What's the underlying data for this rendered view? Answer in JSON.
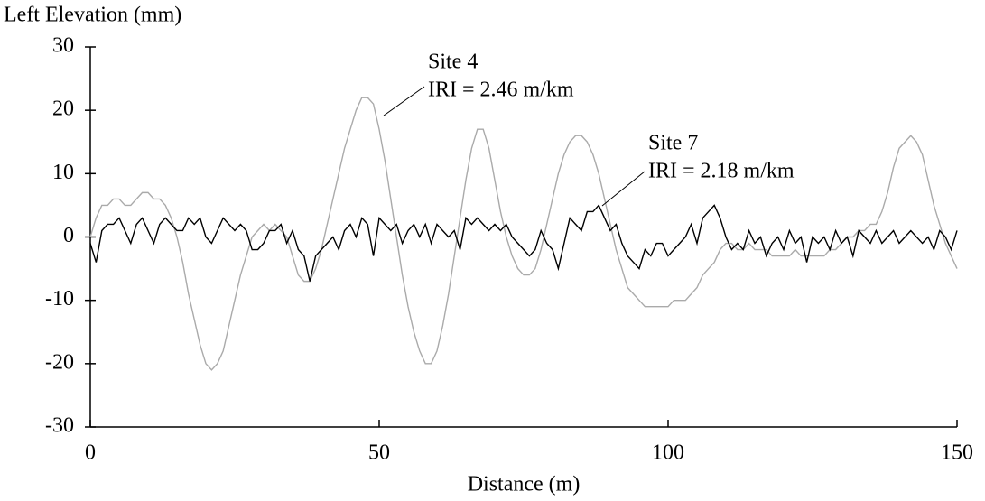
{
  "chart_data": {
    "type": "line",
    "y_label": "Left Elevation (mm)",
    "x_label": "Distance (m)",
    "x": [
      0,
      1,
      2,
      3,
      4,
      5,
      6,
      7,
      8,
      9,
      10,
      11,
      12,
      13,
      14,
      15,
      16,
      17,
      18,
      19,
      20,
      21,
      22,
      23,
      24,
      25,
      26,
      27,
      28,
      29,
      30,
      31,
      32,
      33,
      34,
      35,
      36,
      37,
      38,
      39,
      40,
      41,
      42,
      43,
      44,
      45,
      46,
      47,
      48,
      49,
      50,
      51,
      52,
      53,
      54,
      55,
      56,
      57,
      58,
      59,
      60,
      61,
      62,
      63,
      64,
      65,
      66,
      67,
      68,
      69,
      70,
      71,
      72,
      73,
      74,
      75,
      76,
      77,
      78,
      79,
      80,
      81,
      82,
      83,
      84,
      85,
      86,
      87,
      88,
      89,
      90,
      91,
      92,
      93,
      94,
      95,
      96,
      97,
      98,
      99,
      100,
      101,
      102,
      103,
      104,
      105,
      106,
      107,
      108,
      109,
      110,
      111,
      112,
      113,
      114,
      115,
      116,
      117,
      118,
      119,
      120,
      121,
      122,
      123,
      124,
      125,
      126,
      127,
      128,
      129,
      130,
      131,
      132,
      133,
      134,
      135,
      136,
      137,
      138,
      139,
      140,
      141,
      142,
      143,
      144,
      145,
      146,
      147,
      148,
      149,
      150
    ],
    "series": [
      {
        "name": "Site 4",
        "annotation": "IRI = 2.46 m/km",
        "color": "#aaaaaa",
        "values": [
          0,
          3,
          5,
          5,
          6,
          6,
          5,
          5,
          6,
          7,
          7,
          6,
          6,
          5,
          3,
          0,
          -4,
          -9,
          -13,
          -17,
          -20,
          -21,
          -20,
          -18,
          -14,
          -10,
          -6,
          -3,
          0,
          1,
          2,
          1,
          2,
          1,
          0,
          -3,
          -6,
          -7,
          -7,
          -5,
          -2,
          2,
          6,
          10,
          14,
          17,
          20,
          22,
          22,
          21,
          17,
          12,
          6,
          0,
          -6,
          -11,
          -15,
          -18,
          -20,
          -20,
          -18,
          -14,
          -9,
          -3,
          3,
          9,
          14,
          17,
          17,
          14,
          9,
          4,
          0,
          -3,
          -5,
          -6,
          -6,
          -5,
          -2,
          2,
          6,
          10,
          13,
          15,
          16,
          16,
          15,
          13,
          10,
          6,
          2,
          -2,
          -5,
          -8,
          -9,
          -10,
          -11,
          -11,
          -11,
          -11,
          -11,
          -10,
          -10,
          -10,
          -9,
          -8,
          -6,
          -5,
          -4,
          -2,
          -1,
          -1,
          -2,
          -2,
          -1,
          -2,
          -2,
          -2,
          -3,
          -3,
          -3,
          -3,
          -2,
          -3,
          -3,
          -3,
          -3,
          -3,
          -2,
          -2,
          -1,
          0,
          0,
          1,
          1,
          2,
          2,
          4,
          7,
          11,
          14,
          15,
          16,
          15,
          13,
          9,
          5,
          2,
          -1,
          -3,
          -5
        ]
      },
      {
        "name": "Site 7",
        "annotation": "IRI = 2.18 m/km",
        "color": "#000000",
        "values": [
          -1,
          -4,
          1,
          2,
          2,
          3,
          1,
          -1,
          2,
          3,
          1,
          -1,
          2,
          3,
          2,
          1,
          1,
          3,
          2,
          3,
          0,
          -1,
          1,
          3,
          2,
          1,
          2,
          1,
          -2,
          -2,
          -1,
          1,
          1,
          2,
          -1,
          1,
          -2,
          -3,
          -7,
          -3,
          -2,
          -1,
          0,
          -2,
          1,
          2,
          0,
          3,
          2,
          -3,
          3,
          2,
          1,
          2,
          -1,
          1,
          2,
          0,
          2,
          -1,
          2,
          1,
          0,
          1,
          -2,
          3,
          2,
          3,
          2,
          1,
          2,
          1,
          2,
          0,
          -1,
          -2,
          -3,
          -2,
          1,
          -1,
          -2,
          -5,
          -1,
          3,
          2,
          1,
          4,
          4,
          5,
          3,
          1,
          2,
          -1,
          -3,
          -4,
          -5,
          -2,
          -3,
          -1,
          -1,
          -3,
          -2,
          -1,
          0,
          2,
          -1,
          3,
          4,
          5,
          3,
          0,
          -2,
          -1,
          -2,
          1,
          -1,
          0,
          -3,
          -1,
          0,
          -2,
          1,
          -1,
          0,
          -4,
          0,
          -1,
          0,
          -2,
          1,
          -1,
          0,
          -3,
          1,
          0,
          -1,
          1,
          -1,
          0,
          1,
          -1,
          0,
          1,
          0,
          -1,
          0,
          -2,
          1,
          0,
          -2,
          1
        ]
      }
    ],
    "xlim": [
      0,
      150
    ],
    "xticks": [
      0,
      50,
      100,
      150
    ],
    "ylim": [
      -30,
      30
    ],
    "yticks": [
      -30,
      -20,
      -10,
      0,
      10,
      20,
      30
    ]
  }
}
